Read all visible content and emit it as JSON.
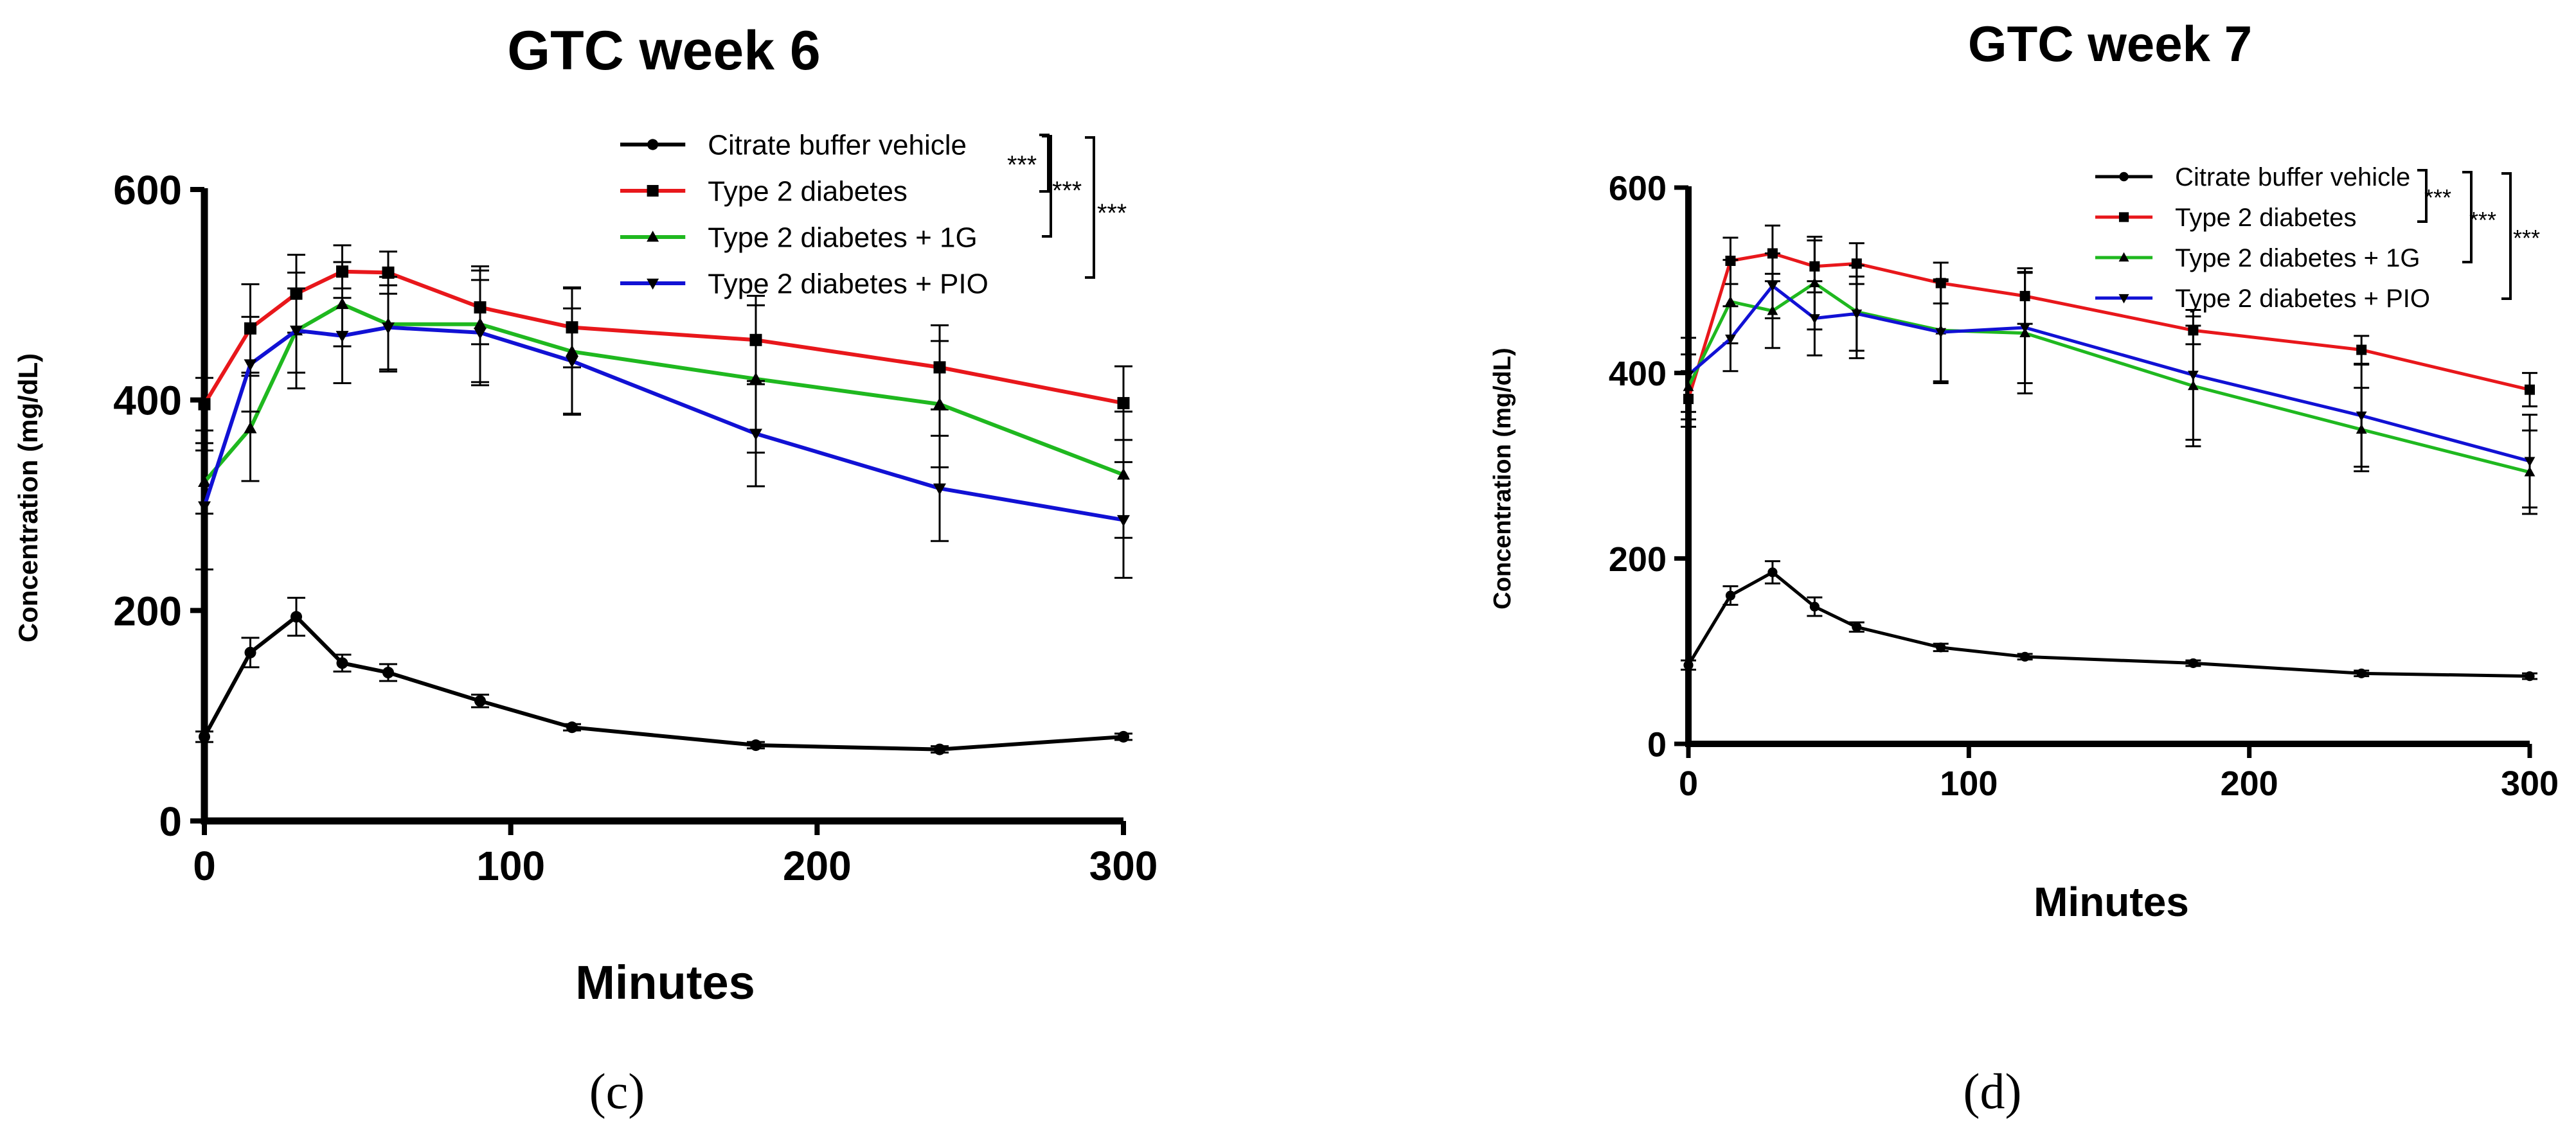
{
  "chart_data": [
    {
      "type": "line",
      "panel_label": "(c)",
      "title": "GTC week 6",
      "xlabel": "Minutes",
      "ylabel": "Concentration (mg/dL)",
      "xlim": [
        0,
        300
      ],
      "ylim": [
        0,
        600
      ],
      "xticks": [
        0,
        100,
        200,
        300
      ],
      "yticks": [
        0,
        200,
        400,
        600
      ],
      "x": [
        0,
        15,
        30,
        45,
        60,
        90,
        120,
        180,
        240,
        300
      ],
      "significance": [
        "***",
        "***",
        "***"
      ],
      "series": [
        {
          "name": "Citrate buffer vehicle",
          "color": "#000000",
          "marker": "circle",
          "values": [
            80,
            160,
            194,
            150,
            141,
            114,
            89,
            72,
            68,
            80
          ],
          "errors": [
            5,
            14,
            18,
            8,
            8,
            6,
            3,
            3,
            3,
            3
          ]
        },
        {
          "name": "Type 2 diabetes",
          "color": "#e8171b",
          "marker": "square",
          "values": [
            396,
            468,
            501,
            522,
            521,
            488,
            469,
            457,
            431,
            397
          ],
          "errors": [
            25,
            42,
            37,
            25,
            20,
            35,
            38,
            42,
            40,
            35
          ]
        },
        {
          "name": "Type 2 diabetes + 1G",
          "color": "#1fb81f",
          "marker": "triangle-up",
          "values": [
            322,
            373,
            466,
            491,
            472,
            472,
            446,
            420,
            396,
            329
          ],
          "errors": [
            30,
            50,
            55,
            40,
            45,
            55,
            60,
            70,
            60,
            60
          ]
        },
        {
          "name": "Type 2 diabetes + PIO",
          "color": "#1111d4",
          "marker": "triangle-down",
          "values": [
            299,
            434,
            466,
            461,
            469,
            464,
            437,
            368,
            316,
            286
          ],
          "errors": [
            60,
            45,
            40,
            45,
            40,
            50,
            50,
            50,
            50,
            55
          ]
        }
      ]
    },
    {
      "type": "line",
      "panel_label": "(d)",
      "title": "GTC week 7",
      "xlabel": "Minutes",
      "ylabel": "Concentration (mg/dL)",
      "xlim": [
        0,
        300
      ],
      "ylim": [
        0,
        600
      ],
      "xticks": [
        0,
        100,
        200,
        300
      ],
      "yticks": [
        0,
        200,
        400,
        600
      ],
      "x": [
        0,
        15,
        30,
        45,
        60,
        90,
        120,
        180,
        240,
        300
      ],
      "significance": [
        "***",
        "***",
        "***"
      ],
      "series": [
        {
          "name": "Citrate buffer vehicle",
          "color": "#000000",
          "marker": "circle",
          "values": [
            85,
            160,
            185,
            148,
            126,
            104,
            94,
            87,
            76,
            73
          ],
          "errors": [
            5,
            10,
            12,
            10,
            5,
            4,
            3,
            3,
            3,
            3
          ]
        },
        {
          "name": "Type 2 diabetes",
          "color": "#e8171b",
          "marker": "square",
          "values": [
            372,
            521,
            529,
            515,
            518,
            497,
            483,
            446,
            425,
            382
          ],
          "errors": [
            30,
            25,
            30,
            28,
            22,
            22,
            30,
            15,
            15,
            18
          ]
        },
        {
          "name": "Type 2 diabetes + 1G",
          "color": "#1fb81f",
          "marker": "triangle-up",
          "values": [
            385,
            477,
            467,
            497,
            466,
            446,
            443,
            386,
            339,
            293
          ],
          "errors": [
            35,
            45,
            40,
            50,
            50,
            55,
            65,
            65,
            45,
            45
          ]
        },
        {
          "name": "Type 2 diabetes + PIO",
          "color": "#1111d4",
          "marker": "triangle-down",
          "values": [
            398,
            437,
            494,
            459,
            464,
            444,
            449,
            398,
            354,
            305
          ],
          "errors": [
            40,
            35,
            35,
            40,
            40,
            55,
            60,
            70,
            55,
            50
          ]
        }
      ]
    }
  ]
}
